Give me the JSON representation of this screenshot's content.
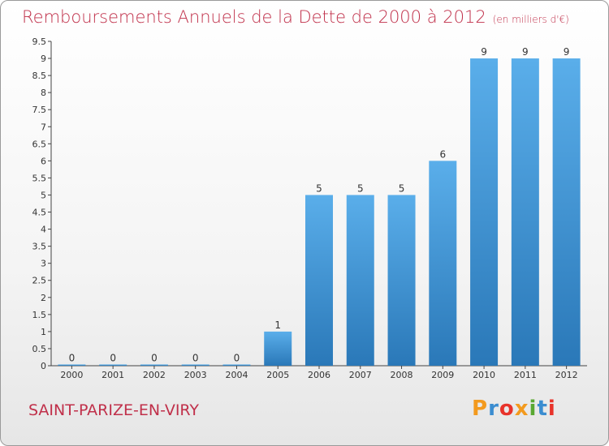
{
  "title": "Remboursements Annuels de la Dette de 2000 à 2012",
  "unit": "(en milliers d'€)",
  "commune": "SAINT-PARIZE-EN-VIRY",
  "logo": {
    "text": "Proxiti",
    "colors": [
      "#f39a1e",
      "#3b8dd0",
      "#e8332a",
      "#f39a1e",
      "#5aa832",
      "#3b8dd0",
      "#e8332a"
    ]
  },
  "chart_data": {
    "type": "bar",
    "categories": [
      "2000",
      "2001",
      "2002",
      "2003",
      "2004",
      "2005",
      "2006",
      "2007",
      "2008",
      "2009",
      "2010",
      "2011",
      "2012"
    ],
    "values": [
      0,
      0,
      0,
      0,
      0,
      1,
      5,
      5,
      5,
      6,
      9,
      9,
      9
    ],
    "value_labels": [
      "0",
      "0",
      "0",
      "0",
      "0",
      "1",
      "5",
      "5",
      "5",
      "6",
      "9",
      "9",
      "9"
    ],
    "yticks": [
      "0",
      "0.5",
      "1",
      "1.5",
      "2",
      "2.5",
      "3",
      "3.5",
      "4",
      "4.5",
      "5",
      "5.5",
      "6",
      "6.5",
      "7",
      "7.5",
      "8",
      "8.5",
      "9",
      "9.5"
    ],
    "ylim": [
      0,
      9.5
    ],
    "grid": false,
    "colors": {
      "bar_top": "#5aaeea",
      "bar_bottom": "#2a78b8",
      "title": "#c0304a"
    }
  }
}
